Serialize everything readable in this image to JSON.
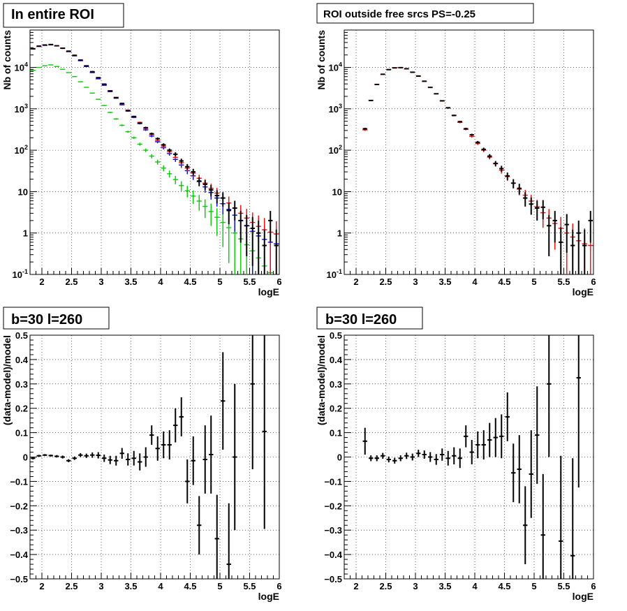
{
  "panels": [
    {
      "title": "In entire ROI",
      "chart_data": {
        "type": "scatter",
        "yscale": "log",
        "xlim": [
          1.8,
          6.0
        ],
        "ylim": [
          0.1,
          80000
        ],
        "xlabel": "logE",
        "ylabel": "Nb of counts",
        "xticks": [
          "2",
          "2.5",
          "3",
          "3.5",
          "4",
          "4.5",
          "5",
          "5.5",
          "6"
        ],
        "yticks": [
          "10^{-1}",
          "1",
          "10",
          "10^{2}",
          "10^{3}",
          "10^{4}"
        ],
        "grid": true,
        "series": [
          {
            "color": "#00cc00",
            "x": [
              1.85,
              1.95,
              2.05,
              2.15,
              2.25,
              2.35,
              2.45,
              2.55,
              2.65,
              2.75,
              2.85,
              2.95,
              3.05,
              3.15,
              3.25,
              3.35,
              3.45,
              3.55,
              3.65,
              3.75,
              3.85,
              3.95,
              4.05,
              4.15,
              4.25,
              4.35,
              4.45,
              4.55,
              4.65,
              4.75,
              4.85,
              4.95,
              5.05,
              5.15,
              5.25,
              5.35,
              5.45,
              5.55,
              5.65,
              5.75,
              5.85,
              5.95
            ],
            "y": [
              8500,
              10000,
              11000,
              11500,
              10500,
              9000,
              7500,
              6000,
              4500,
              3300,
              2400,
              1700,
              1200,
              820,
              570,
              400,
              280,
              200,
              140,
              100,
              72,
              52,
              37,
              27,
              19.5,
              14,
              10.5,
              7.8,
              5.9,
              4.4,
              3.3,
              2.4,
              1.8,
              1.35,
              1.0,
              0.72,
              0.52,
              0.37,
              0.25,
              0.16,
              0.11,
              0.08
            ]
          },
          {
            "color": "#0000ff",
            "x": [
              1.85,
              1.95,
              2.05,
              2.15,
              2.25,
              2.35,
              2.45,
              2.55,
              2.65,
              2.75,
              2.85,
              2.95,
              3.05,
              3.15,
              3.25,
              3.35,
              3.45,
              3.55,
              3.65,
              3.75,
              3.85,
              3.95,
              4.05,
              4.15,
              4.25,
              4.35,
              4.45,
              4.55,
              4.65,
              4.75,
              4.85,
              4.95,
              5.05,
              5.15,
              5.25,
              5.35,
              5.45,
              5.55,
              5.65,
              5.75,
              5.85,
              5.95
            ],
            "y": [
              28000,
              32000,
              34000,
              35000,
              33000,
              29000,
              24000,
              19000,
              14500,
              10500,
              7500,
              5300,
              3700,
              2600,
              1800,
              1250,
              880,
              620,
              440,
              310,
              220,
              160,
              115,
              83,
              60,
              44,
              32,
              24,
              17.5,
              13,
              9.5,
              7.0,
              5.1,
              3.7,
              2.7,
              2.0,
              1.5,
              1.1,
              0.85,
              0.7,
              0.6,
              0.55
            ]
          },
          {
            "color": "#ff0000",
            "x": [
              1.85,
              1.95,
              2.05,
              2.15,
              2.25,
              2.35,
              2.45,
              2.55,
              2.65,
              2.75,
              2.85,
              2.95,
              3.05,
              3.15,
              3.25,
              3.35,
              3.45,
              3.55,
              3.65,
              3.75,
              3.85,
              3.95,
              4.05,
              4.15,
              4.25,
              4.35,
              4.45,
              4.55,
              4.65,
              4.75,
              4.85,
              4.95,
              5.05,
              5.15,
              5.25,
              5.35,
              5.45,
              5.55,
              5.65,
              5.75,
              5.85,
              5.95
            ],
            "y": [
              28500,
              32500,
              34500,
              35500,
              33500,
              29500,
              24500,
              19500,
              15000,
              11000,
              7800,
              5600,
              3900,
              2750,
              1900,
              1320,
              930,
              660,
              470,
              335,
              240,
              172,
              125,
              92,
              67,
              50,
              37,
              28,
              21,
              16,
              12,
              9.2,
              7.0,
              5.3,
              4.0,
              3.0,
              2.3,
              1.8,
              1.45,
              1.2,
              1.05,
              0.95
            ]
          },
          {
            "color": "#000000",
            "x": [
              1.85,
              1.95,
              2.05,
              2.15,
              2.25,
              2.35,
              2.45,
              2.55,
              2.65,
              2.75,
              2.85,
              2.95,
              3.05,
              3.15,
              3.25,
              3.35,
              3.45,
              3.55,
              3.65,
              3.75,
              3.85,
              3.95,
              4.05,
              4.15,
              4.25,
              4.35,
              4.45,
              4.55,
              4.65,
              4.75,
              4.85,
              4.95,
              5.05,
              5.15,
              5.25,
              5.35,
              5.45,
              5.55,
              5.65,
              5.75,
              5.85,
              5.95
            ],
            "y": [
              28200,
              32700,
              34800,
              35700,
              33300,
              29000,
              24700,
              19600,
              15100,
              10900,
              7900,
              5650,
              3950,
              2700,
              1850,
              1350,
              900,
              650,
              450,
              350,
              250,
              190,
              135,
              100,
              80,
              55,
              40,
              30,
              18,
              15,
              11,
              8,
              7,
              3.5,
              4,
              2,
              1.5,
              1.3,
              1,
              0.5,
              2,
              0.5
            ]
          }
        ]
      }
    },
    {
      "title": "ROI outside free srcs PS=-0.25",
      "chart_data": {
        "type": "scatter",
        "yscale": "log",
        "xlim": [
          1.8,
          6.0
        ],
        "ylim": [
          0.1,
          80000
        ],
        "xlabel": "logE",
        "ylabel": "Nb of counts",
        "xticks": [
          "2",
          "2.5",
          "3",
          "3.5",
          "4",
          "4.5",
          "5",
          "5.5",
          "6"
        ],
        "yticks": [
          "10^{-1}",
          "1",
          "10",
          "10^{2}",
          "10^{3}",
          "10^{4}"
        ],
        "grid": true,
        "series": [
          {
            "color": "#ff0000",
            "x": [
              2.15,
              2.25,
              2.35,
              2.45,
              2.55,
              2.65,
              2.75,
              2.85,
              2.95,
              3.05,
              3.15,
              3.25,
              3.35,
              3.45,
              3.55,
              3.65,
              3.75,
              3.85,
              3.95,
              4.05,
              4.15,
              4.25,
              4.35,
              4.45,
              4.55,
              4.65,
              4.75,
              4.85,
              4.95,
              5.05,
              5.15,
              5.25,
              5.35,
              5.45,
              5.55,
              5.65,
              5.75,
              5.85,
              5.95
            ],
            "y": [
              310,
              1600,
              3900,
              6800,
              8900,
              9800,
              9900,
              9200,
              7700,
              6100,
              4600,
              3300,
              2300,
              1550,
              1050,
              700,
              470,
              320,
              215,
              145,
              100,
              68,
              47,
              33,
              23,
              16,
              11.5,
              8.2,
              5.9,
              4.3,
              3.1,
              2.3,
              1.7,
              1.3,
              1.0,
              0.8,
              0.65,
              0.55,
              0.5
            ]
          },
          {
            "color": "#000000",
            "x": [
              2.15,
              2.25,
              2.35,
              2.45,
              2.55,
              2.65,
              2.75,
              2.85,
              2.95,
              3.05,
              3.15,
              3.25,
              3.35,
              3.45,
              3.55,
              3.65,
              3.75,
              3.85,
              3.95,
              4.05,
              4.15,
              4.25,
              4.35,
              4.45,
              4.55,
              4.65,
              4.75,
              4.85,
              4.95,
              5.05,
              5.15,
              5.25,
              5.35,
              5.45,
              5.55,
              5.65,
              5.75,
              5.85,
              5.95
            ],
            "y": [
              330,
              1590,
              3880,
              6830,
              8850,
              9750,
              9880,
              9300,
              7650,
              6200,
              4640,
              3290,
              2310,
              1560,
              1060,
              690,
              490,
              330,
              235,
              155,
              105,
              72,
              48,
              36,
              24,
              16,
              12,
              7,
              5,
              4,
              4.2,
              1.5,
              2,
              0.6,
              1.6,
              0.5,
              1,
              0.5,
              2
            ]
          }
        ]
      }
    },
    {
      "title": "b=30 l=260",
      "chart_data": {
        "type": "scatter",
        "xlim": [
          1.8,
          6.0
        ],
        "ylim": [
          -0.5,
          0.5
        ],
        "xlabel": "logE",
        "ylabel": "(data-model)/model",
        "xticks": [
          "2",
          "2.5",
          "3",
          "3.5",
          "4",
          "4.5",
          "5",
          "5.5",
          "6"
        ],
        "yticks": [
          "-0.5",
          "-0.4",
          "-0.3",
          "-0.2",
          "-0.1",
          "0",
          "0.1",
          "0.2",
          "0.3",
          "0.4",
          "0.5"
        ],
        "grid": true,
        "series": [
          {
            "color": "#000000",
            "x": [
              1.85,
              1.95,
              2.05,
              2.15,
              2.25,
              2.35,
              2.45,
              2.55,
              2.65,
              2.75,
              2.85,
              2.95,
              3.05,
              3.15,
              3.25,
              3.35,
              3.45,
              3.55,
              3.65,
              3.75,
              3.85,
              3.95,
              4.05,
              4.15,
              4.25,
              4.35,
              4.45,
              4.55,
              4.65,
              4.75,
              4.85,
              4.95,
              5.05,
              5.15,
              5.25,
              5.55,
              5.75
            ],
            "y": [
              -0.005,
              0.005,
              0.008,
              0.006,
              0.003,
              0.0,
              -0.015,
              -0.005,
              0.008,
              0.005,
              0.008,
              0.007,
              -0.005,
              -0.012,
              -0.015,
              0.015,
              -0.01,
              -0.005,
              -0.02,
              0.0,
              0.09,
              0.035,
              0.05,
              0.05,
              0.13,
              0.165,
              -0.1,
              -0.015,
              -0.28,
              -0.01,
              0.01,
              -0.335,
              0.23,
              -0.44,
              0.0,
              0.3,
              0.105
            ],
            "err": [
              0.005,
              0.004,
              0.004,
              0.004,
              0.005,
              0.006,
              0.006,
              0.007,
              0.008,
              0.009,
              0.011,
              0.013,
              0.015,
              0.017,
              0.02,
              0.022,
              0.025,
              0.03,
              0.035,
              0.04,
              0.04,
              0.05,
              0.055,
              0.06,
              0.07,
              0.08,
              0.09,
              0.1,
              0.12,
              0.14,
              0.16,
              0.18,
              0.2,
              0.25,
              0.3,
              0.35,
              0.4
            ]
          }
        ]
      }
    },
    {
      "title": "b=30 l=260",
      "chart_data": {
        "type": "scatter",
        "xlim": [
          1.8,
          6.0
        ],
        "ylim": [
          -0.5,
          0.5
        ],
        "xlabel": "logE",
        "ylabel": "(data-model)/model",
        "xticks": [
          "2",
          "2.5",
          "3",
          "3.5",
          "4",
          "4.5",
          "5",
          "5.5",
          "6"
        ],
        "yticks": [
          "-0.5",
          "-0.4",
          "-0.3",
          "-0.2",
          "-0.1",
          "0",
          "0.1",
          "0.2",
          "0.3",
          "0.4",
          "0.5"
        ],
        "grid": true,
        "series": [
          {
            "color": "#000000",
            "x": [
              2.15,
              2.25,
              2.35,
              2.45,
              2.55,
              2.65,
              2.75,
              2.85,
              2.95,
              3.05,
              3.15,
              3.25,
              3.35,
              3.45,
              3.55,
              3.65,
              3.75,
              3.85,
              3.95,
              4.05,
              4.15,
              4.25,
              4.35,
              4.45,
              4.55,
              4.65,
              4.75,
              4.85,
              4.95,
              5.05,
              5.15,
              5.25,
              5.45,
              5.65,
              5.75
            ],
            "y": [
              0.065,
              -0.005,
              -0.005,
              0.005,
              -0.01,
              -0.015,
              -0.005,
              0.005,
              0.0,
              0.015,
              0.01,
              0.0,
              -0.01,
              0.01,
              -0.005,
              0.005,
              -0.005,
              0.085,
              0.02,
              0.05,
              0.05,
              0.07,
              0.08,
              0.085,
              0.165,
              -0.065,
              -0.05,
              -0.28,
              -0.07,
              0.09,
              -0.32,
              0.3,
              -0.345,
              -0.405,
              0.325
            ],
            "err": [
              0.055,
              0.012,
              0.012,
              0.012,
              0.012,
              0.012,
              0.012,
              0.013,
              0.014,
              0.015,
              0.017,
              0.02,
              0.022,
              0.025,
              0.03,
              0.035,
              0.04,
              0.045,
              0.05,
              0.055,
              0.06,
              0.07,
              0.08,
              0.09,
              0.1,
              0.12,
              0.14,
              0.16,
              0.18,
              0.2,
              0.25,
              0.3,
              0.35,
              0.4,
              0.45
            ]
          }
        ]
      }
    }
  ]
}
